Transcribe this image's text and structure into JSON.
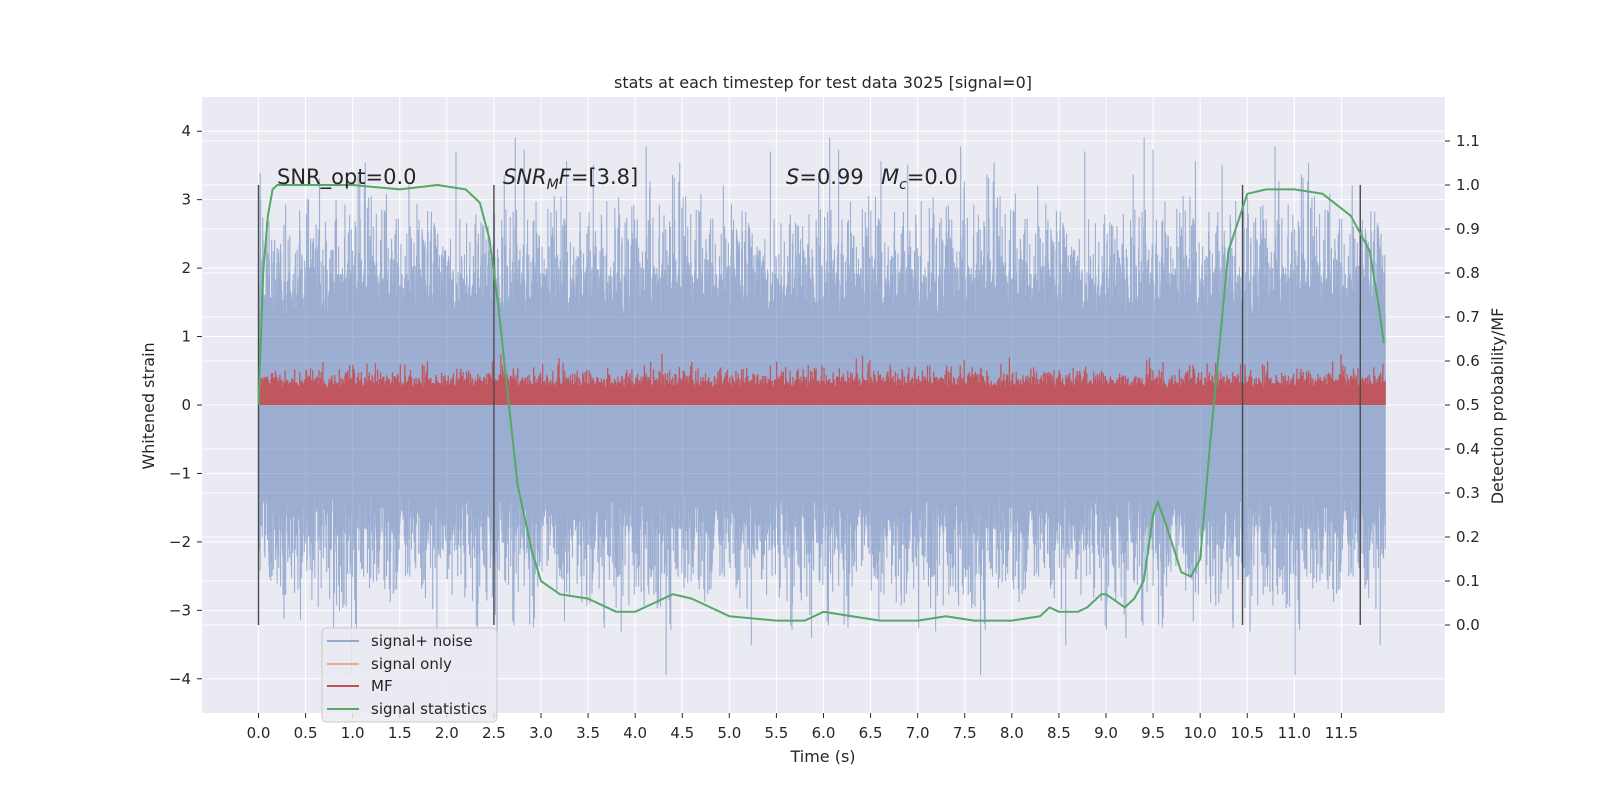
{
  "chart_data": {
    "type": "line",
    "title": "stats at each timestep for test data 3025 [signal=0]",
    "xlabel": "Time (s)",
    "ylabel_left": "Whitened strain",
    "ylabel_right": "Detection probability/MF",
    "xlim": [
      -0.6,
      12.6
    ],
    "ylim_left": [
      -4.5,
      4.5
    ],
    "ylim_right": [
      -0.2,
      1.2
    ],
    "x_ticks": [
      "0.0",
      "0.5",
      "1.0",
      "1.5",
      "2.0",
      "2.5",
      "3.0",
      "3.5",
      "4.0",
      "4.5",
      "5.0",
      "5.5",
      "6.0",
      "6.5",
      "7.0",
      "7.5",
      "8.0",
      "8.5",
      "9.0",
      "9.5",
      "10.0",
      "10.5",
      "11.0",
      "11.5"
    ],
    "y_ticks_left": [
      "4",
      "3",
      "2",
      "1",
      "0",
      "−1",
      "−2",
      "−3",
      "−4"
    ],
    "y_ticks_right": [
      "1.1",
      "1.0",
      "0.9",
      "0.8",
      "0.7",
      "0.6",
      "0.5",
      "0.4",
      "0.3",
      "0.2",
      "0.1",
      "0.0"
    ],
    "grid": true,
    "legend_placement": "lower-left",
    "annotations": {
      "snr_opt": "SNR_opt=0.0",
      "snr_mf_italic": "SNR",
      "snr_mf_sub": "M",
      "snr_mf_rest_italic": "F",
      "snr_mf_value": "=[3.8]",
      "s_italic": "S",
      "s_value": "=0.99",
      "mc_italic": "M",
      "mc_sub": "c",
      "mc_value": "=0.0"
    },
    "colors": {
      "noise": "#4c72b0",
      "signal": "#dd8452",
      "mf": "#c44e52",
      "stats": "#55a868",
      "background": "#eaeaf2"
    },
    "series": [
      {
        "name": "signal+ noise",
        "axis": "left",
        "envelope": {
          "x_range": [
            0.0,
            11.97
          ],
          "typical_amplitude": 2.5,
          "peak_max": 4.1,
          "peak_min": -4.1
        }
      },
      {
        "name": "signal only",
        "axis": "left",
        "values_note": "flat",
        "y": 0.0
      },
      {
        "name": "MF",
        "axis": "left",
        "envelope": {
          "x_range": [
            0.0,
            11.97
          ],
          "baseline": 0.0,
          "typical_top": 0.6,
          "peak_max": 1.0
        }
      },
      {
        "name": "signal statistics",
        "axis": "right",
        "x": [
          0.0,
          0.05,
          0.1,
          0.15,
          0.2,
          0.5,
          1.0,
          1.5,
          1.9,
          2.2,
          2.35,
          2.45,
          2.55,
          2.65,
          2.75,
          2.9,
          3.0,
          3.2,
          3.5,
          3.8,
          4.0,
          4.2,
          4.4,
          4.6,
          5.0,
          5.5,
          5.8,
          6.0,
          6.3,
          6.6,
          7.0,
          7.3,
          7.6,
          8.0,
          8.3,
          8.4,
          8.5,
          8.7,
          8.8,
          8.95,
          9.0,
          9.2,
          9.3,
          9.4,
          9.5,
          9.55,
          9.65,
          9.8,
          9.9,
          10.0,
          10.1,
          10.3,
          10.5,
          10.7,
          11.0,
          11.3,
          11.6,
          11.8,
          11.9,
          11.95
        ],
        "y": [
          0.5,
          0.8,
          0.93,
          0.99,
          1.0,
          1.0,
          1.0,
          0.99,
          1.0,
          0.99,
          0.96,
          0.88,
          0.72,
          0.52,
          0.32,
          0.17,
          0.1,
          0.07,
          0.06,
          0.03,
          0.03,
          0.05,
          0.07,
          0.06,
          0.02,
          0.01,
          0.01,
          0.03,
          0.02,
          0.01,
          0.01,
          0.02,
          0.01,
          0.01,
          0.02,
          0.04,
          0.03,
          0.03,
          0.04,
          0.07,
          0.07,
          0.04,
          0.06,
          0.1,
          0.25,
          0.28,
          0.22,
          0.12,
          0.11,
          0.15,
          0.4,
          0.85,
          0.98,
          0.99,
          0.99,
          0.98,
          0.93,
          0.85,
          0.72,
          0.64
        ]
      }
    ],
    "vertical_lines_x": [
      0.0,
      2.5,
      10.45,
      11.7
    ]
  }
}
